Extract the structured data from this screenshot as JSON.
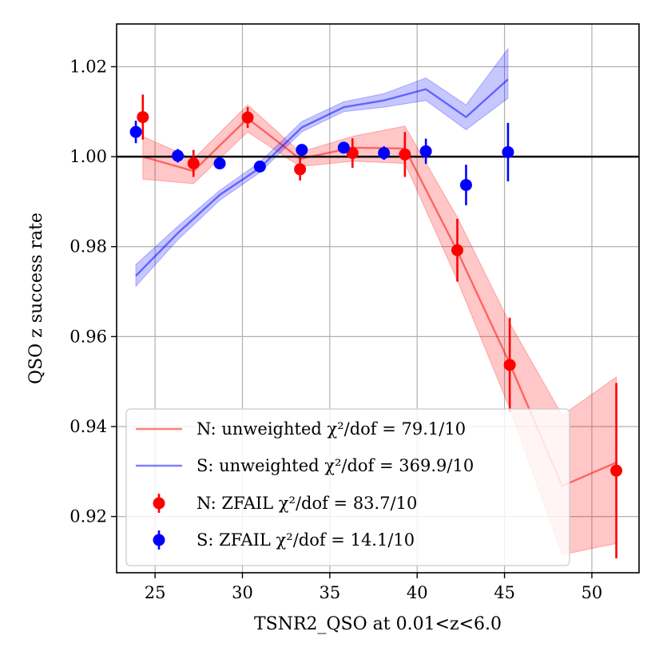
{
  "chart_data": {
    "type": "line",
    "xlabel": "TSNR2_QSO at 0.01<z<6.0",
    "ylabel": "QSO z success rate",
    "xlim": [
      22.8,
      52.7
    ],
    "ylim": [
      0.9075,
      1.0295
    ],
    "x_ticks": [
      25,
      30,
      35,
      40,
      45,
      50
    ],
    "y_ticks": [
      0.92,
      0.94,
      0.96,
      0.98,
      1.0,
      1.02
    ],
    "x_tick_labels": [
      "25",
      "30",
      "35",
      "40",
      "45",
      "50"
    ],
    "y_tick_labels": [
      "0.92",
      "0.94",
      "0.96",
      "0.98",
      "1.00",
      "1.02"
    ],
    "grid": true,
    "reference_line": 1.0,
    "legend_position": "lower-left",
    "series": [
      {
        "name": "N: unweighted",
        "kind": "line-band",
        "color": "#ff0000",
        "x": [
          24.3,
          27.2,
          30.3,
          33.3,
          36.3,
          39.3,
          42.3,
          45.3,
          48.3,
          51.4
        ],
        "y": [
          1.0,
          0.9968,
          1.0085,
          0.9995,
          1.002,
          1.0018,
          0.979,
          0.954,
          0.9268,
          0.932
        ],
        "lower": [
          0.995,
          0.994,
          1.0055,
          0.9978,
          0.999,
          0.9985,
          0.9725,
          0.944,
          0.9115,
          0.914
        ],
        "upper": [
          1.0045,
          0.9995,
          1.0115,
          1.001,
          1.0045,
          1.0068,
          0.9865,
          0.963,
          0.9425,
          0.951
        ]
      },
      {
        "name": "S: unweighted",
        "kind": "line-band",
        "color": "#0000ff",
        "x": [
          23.9,
          26.3,
          28.7,
          31.0,
          33.4,
          35.8,
          38.1,
          40.5,
          42.8,
          45.2
        ],
        "y": [
          0.9735,
          0.983,
          0.9915,
          0.9975,
          1.0065,
          1.011,
          1.0125,
          1.015,
          1.0088,
          1.0172
        ],
        "lower": [
          0.9712,
          0.9815,
          0.9903,
          0.9965,
          1.0055,
          1.01,
          1.011,
          1.0125,
          1.006,
          1.013
        ],
        "upper": [
          0.976,
          0.9845,
          0.9925,
          0.9988,
          1.0078,
          1.0122,
          1.014,
          1.0175,
          1.0115,
          1.024
        ]
      },
      {
        "name": "N: ZFAIL",
        "kind": "errorbar",
        "color": "#ff0000",
        "x": [
          24.3,
          27.2,
          30.3,
          33.3,
          36.3,
          39.3,
          42.3,
          45.3,
          51.4
        ],
        "y": [
          1.0088,
          0.9985,
          1.0087,
          0.9972,
          1.0008,
          1.0005,
          0.9792,
          0.9537,
          0.9302
        ],
        "err": [
          0.005,
          0.003,
          0.0023,
          0.0025,
          0.0033,
          0.005,
          0.007,
          0.0105,
          0.0195
        ]
      },
      {
        "name": "S: ZFAIL",
        "kind": "errorbar",
        "color": "#0000ff",
        "x": [
          23.9,
          26.3,
          28.7,
          31.0,
          33.4,
          35.8,
          38.1,
          40.5,
          42.8,
          45.2
        ],
        "y": [
          1.0055,
          1.0002,
          0.9985,
          0.9978,
          1.0015,
          1.002,
          1.0008,
          1.0012,
          0.9937,
          1.001
        ],
        "err": [
          0.0025,
          0.0015,
          0.0008,
          0.0008,
          0.0008,
          0.0008,
          0.0015,
          0.0028,
          0.0045,
          0.0065
        ]
      }
    ],
    "legend": [
      {
        "label": "N: unweighted χ²/dof = 79.1/10",
        "kind": "line",
        "color": "#ff0000"
      },
      {
        "label": "S: unweighted χ²/dof = 369.9/10",
        "kind": "line",
        "color": "#0000ff"
      },
      {
        "label": "N: ZFAIL χ²/dof = 83.7/10",
        "kind": "errorbar",
        "color": "#ff0000"
      },
      {
        "label": "S: ZFAIL χ²/dof = 14.1/10",
        "kind": "errorbar",
        "color": "#0000ff"
      }
    ]
  }
}
